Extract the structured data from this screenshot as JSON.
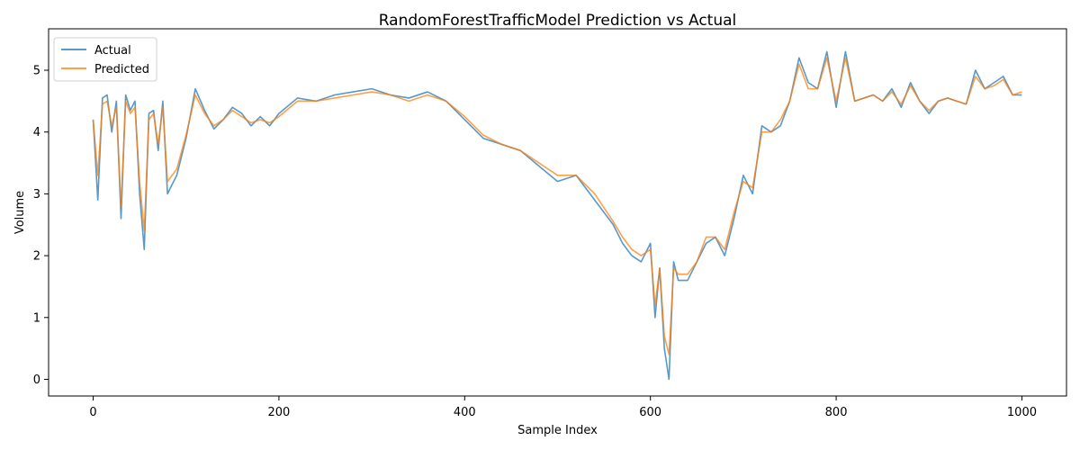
{
  "chart_data": {
    "type": "line",
    "title": "RandomForestTrafficModel Prediction vs Actual",
    "xlabel": "Sample Index",
    "ylabel": "Volume",
    "xlim": [
      -48,
      1048
    ],
    "ylim": [
      -0.27,
      5.67
    ],
    "xticks": [
      0,
      200,
      400,
      600,
      800,
      1000
    ],
    "yticks": [
      0,
      1,
      2,
      3,
      4,
      5
    ],
    "grid": false,
    "legend_position": "top-left",
    "series": [
      {
        "name": "Actual",
        "color": "#1f77b4",
        "x": [
          0,
          5,
          10,
          15,
          20,
          25,
          30,
          35,
          40,
          45,
          50,
          55,
          60,
          65,
          70,
          75,
          80,
          90,
          100,
          110,
          120,
          130,
          140,
          150,
          160,
          170,
          180,
          190,
          200,
          220,
          240,
          260,
          280,
          300,
          320,
          340,
          360,
          380,
          400,
          420,
          440,
          460,
          480,
          500,
          520,
          540,
          560,
          570,
          580,
          590,
          600,
          605,
          610,
          615,
          620,
          625,
          630,
          640,
          650,
          660,
          670,
          680,
          690,
          700,
          710,
          720,
          730,
          740,
          750,
          760,
          770,
          780,
          790,
          800,
          810,
          820,
          830,
          840,
          850,
          860,
          870,
          880,
          890,
          900,
          910,
          920,
          930,
          940,
          950,
          960,
          970,
          980,
          990,
          1000
        ],
        "values": [
          4.2,
          2.9,
          4.55,
          4.6,
          4.0,
          4.5,
          2.6,
          4.6,
          4.35,
          4.5,
          3.0,
          2.1,
          4.3,
          4.35,
          3.7,
          4.5,
          3.0,
          3.3,
          3.9,
          4.7,
          4.35,
          4.05,
          4.2,
          4.4,
          4.3,
          4.1,
          4.25,
          4.1,
          4.3,
          4.55,
          4.5,
          4.6,
          4.65,
          4.7,
          4.6,
          4.55,
          4.65,
          4.5,
          4.2,
          3.9,
          3.8,
          3.7,
          3.45,
          3.2,
          3.3,
          2.9,
          2.5,
          2.2,
          2.0,
          1.9,
          2.2,
          1.0,
          1.8,
          0.5,
          0.0,
          1.9,
          1.6,
          1.6,
          1.9,
          2.2,
          2.3,
          2.0,
          2.6,
          3.3,
          3.0,
          4.1,
          4.0,
          4.1,
          4.5,
          5.2,
          4.8,
          4.7,
          5.3,
          4.4,
          5.3,
          4.5,
          4.55,
          4.6,
          4.5,
          4.7,
          4.4,
          4.8,
          4.5,
          4.3,
          4.5,
          4.55,
          4.5,
          4.45,
          5.0,
          4.7,
          4.8,
          4.9,
          4.6,
          4.6
        ]
      },
      {
        "name": "Predicted",
        "color": "#ff7f0e",
        "x": [
          0,
          5,
          10,
          15,
          20,
          25,
          30,
          35,
          40,
          45,
          50,
          55,
          60,
          65,
          70,
          75,
          80,
          90,
          100,
          110,
          120,
          130,
          140,
          150,
          160,
          170,
          180,
          190,
          200,
          220,
          240,
          260,
          280,
          300,
          320,
          340,
          360,
          380,
          400,
          420,
          440,
          460,
          480,
          500,
          520,
          540,
          560,
          570,
          580,
          590,
          600,
          605,
          610,
          615,
          620,
          625,
          630,
          640,
          650,
          660,
          670,
          680,
          690,
          700,
          710,
          720,
          730,
          740,
          750,
          760,
          770,
          780,
          790,
          800,
          810,
          820,
          830,
          840,
          850,
          860,
          870,
          880,
          890,
          900,
          910,
          920,
          930,
          940,
          950,
          960,
          970,
          980,
          990,
          1000
        ],
        "values": [
          4.2,
          3.3,
          4.45,
          4.5,
          4.1,
          4.4,
          2.8,
          4.5,
          4.3,
          4.4,
          3.2,
          2.4,
          4.2,
          4.3,
          3.8,
          4.4,
          3.2,
          3.4,
          3.95,
          4.6,
          4.3,
          4.1,
          4.2,
          4.35,
          4.25,
          4.15,
          4.2,
          4.15,
          4.25,
          4.5,
          4.5,
          4.55,
          4.6,
          4.65,
          4.6,
          4.5,
          4.6,
          4.5,
          4.25,
          3.95,
          3.8,
          3.7,
          3.5,
          3.3,
          3.3,
          3.0,
          2.55,
          2.3,
          2.1,
          2.0,
          2.1,
          1.2,
          1.8,
          0.7,
          0.4,
          1.8,
          1.7,
          1.7,
          1.9,
          2.3,
          2.3,
          2.1,
          2.7,
          3.2,
          3.1,
          4.0,
          4.0,
          4.2,
          4.5,
          5.1,
          4.7,
          4.7,
          5.2,
          4.5,
          5.2,
          4.5,
          4.55,
          4.6,
          4.5,
          4.65,
          4.45,
          4.75,
          4.5,
          4.35,
          4.5,
          4.55,
          4.5,
          4.45,
          4.9,
          4.7,
          4.75,
          4.85,
          4.6,
          4.65
        ]
      }
    ]
  }
}
